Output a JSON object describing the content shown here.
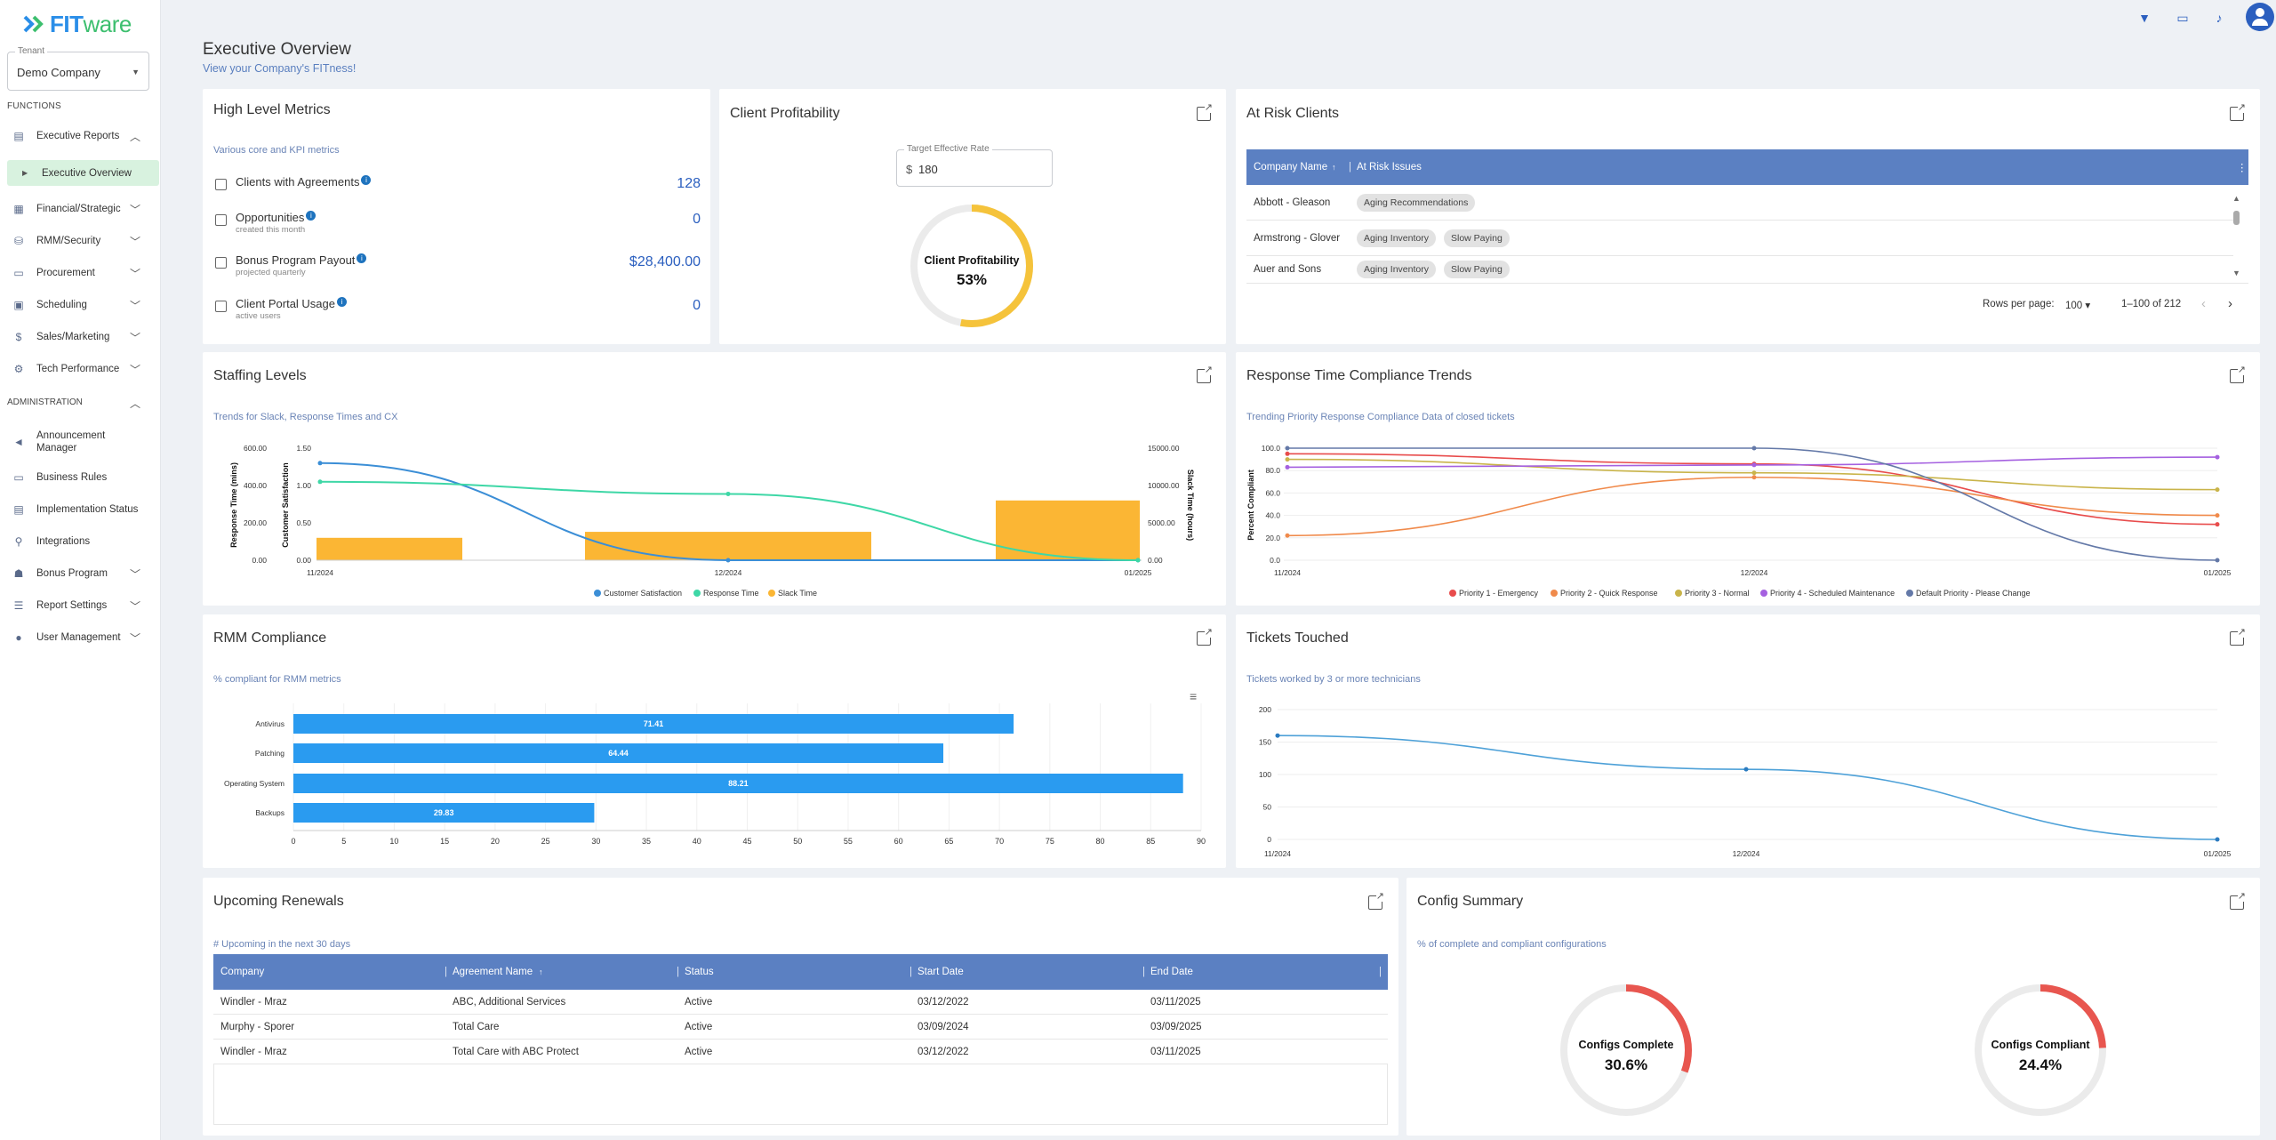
{
  "app": {
    "logo_fit": "FIT",
    "logo_ware": "ware"
  },
  "tenant": {
    "label": "Tenant",
    "value": "Demo Company"
  },
  "sidebar": {
    "functions_label": "FUNCTIONS",
    "admin_label": "ADMINISTRATION",
    "functions": [
      {
        "label": "Executive Reports",
        "icon": "report-icon",
        "caret": "up"
      },
      {
        "label": "Financial/Strategic",
        "icon": "finance-icon",
        "caret": "down"
      },
      {
        "label": "RMM/Security",
        "icon": "security-icon",
        "caret": "down"
      },
      {
        "label": "Procurement",
        "icon": "procurement-icon",
        "caret": "down"
      },
      {
        "label": "Scheduling",
        "icon": "calendar-icon",
        "caret": "down"
      },
      {
        "label": "Sales/Marketing",
        "icon": "dollar-icon",
        "caret": "down"
      },
      {
        "label": "Tech Performance",
        "icon": "tech-icon",
        "caret": "down"
      }
    ],
    "active_sub": "Executive Overview",
    "admin": [
      {
        "label": "Announcement Manager",
        "icon": "megaphone-icon"
      },
      {
        "label": "Business Rules",
        "icon": "rules-icon"
      },
      {
        "label": "Implementation Status",
        "icon": "status-icon"
      },
      {
        "label": "Integrations",
        "icon": "integrations-icon"
      },
      {
        "label": "Bonus Program",
        "icon": "bonus-icon",
        "caret": "down"
      },
      {
        "label": "Report Settings",
        "icon": "settings-icon",
        "caret": "down"
      },
      {
        "label": "User Management",
        "icon": "user-icon",
        "caret": "down"
      }
    ]
  },
  "header": {
    "title": "Executive Overview",
    "subtitle": "View your Company's FITness!"
  },
  "metrics": {
    "title": "High Level Metrics",
    "subtitle": "Various core and KPI metrics",
    "items": [
      {
        "label": "Clients with Agreements",
        "sub": "",
        "value": "128"
      },
      {
        "label": "Opportunities",
        "sub": "created this month",
        "value": "0"
      },
      {
        "label": "Bonus Program Payout",
        "sub": "projected quarterly",
        "value": "$28,400.00"
      },
      {
        "label": "Client Portal Usage",
        "sub": "active users",
        "value": "0"
      }
    ]
  },
  "profitability": {
    "title": "Client Profitability",
    "rate_label": "Target Effective Rate",
    "rate_currency": "$",
    "rate_value": "180",
    "donut_label": "Client Profitability",
    "donut_value": "53%",
    "percent": 53,
    "color": "#f5c33b"
  },
  "at_risk": {
    "title": "At Risk Clients",
    "columns": [
      "Company Name",
      "At Risk Issues"
    ],
    "rows": [
      {
        "company": "Abbott - Gleason",
        "issues": [
          "Aging Recommendations"
        ]
      },
      {
        "company": "Armstrong - Glover",
        "issues": [
          "Aging Inventory",
          "Slow Paying"
        ]
      },
      {
        "company": "Auer and Sons",
        "issues": [
          "Aging Inventory",
          "Slow Paying"
        ]
      }
    ],
    "rows_per_page_label": "Rows per page:",
    "rows_per_page": "100",
    "range": "1–100 of 212"
  },
  "staffing": {
    "title": "Staffing Levels",
    "subtitle": "Trends for Slack, Response Times and CX"
  },
  "response": {
    "title": "Response Time Compliance Trends",
    "subtitle": "Trending Priority Response Compliance Data of closed tickets"
  },
  "rmm": {
    "title": "RMM Compliance",
    "subtitle": "% compliant for RMM metrics"
  },
  "tickets": {
    "title": "Tickets Touched",
    "subtitle": "Tickets worked by 3 or more technicians"
  },
  "renewals": {
    "title": "Upcoming Renewals",
    "subtitle": "# Upcoming in the next 30 days",
    "columns": [
      "Company",
      "Agreement Name",
      "Status",
      "Start Date",
      "End Date"
    ],
    "rows": [
      [
        "Windler - Mraz",
        "ABC, Additional Services",
        "Active",
        "03/12/2022",
        "03/11/2025"
      ],
      [
        "Murphy - Sporer",
        "Total Care",
        "Active",
        "03/09/2024",
        "03/09/2025"
      ],
      [
        "Windler - Mraz",
        "Total Care with ABC Protect",
        "Active",
        "03/12/2022",
        "03/11/2025"
      ]
    ]
  },
  "config": {
    "title": "Config Summary",
    "subtitle": "% of complete and compliant configurations",
    "complete_label": "Configs Complete",
    "complete_value": "30.6%",
    "complete_percent": 30.6,
    "compliant_label": "Configs Compliant",
    "compliant_value": "24.4%",
    "compliant_percent": 24.4,
    "color": "#e8564f"
  },
  "chart_data": [
    {
      "id": "staffing",
      "type": "line",
      "x": [
        "11/2024",
        "12/2024",
        "01/2025"
      ],
      "ylabel": "Response Time (mins)",
      "ylabel2": "Customer Satisfaction",
      "ylabel3": "Slack Time (hours)",
      "y_left_ticks": [
        "600.00",
        "400.00",
        "200.00",
        "0.00"
      ],
      "y_mid_ticks": [
        "1.50",
        "1.00",
        "0.50",
        "0.00"
      ],
      "y_right_ticks": [
        "15000.00",
        "10000.00",
        "5000.00",
        "0.00"
      ],
      "series": [
        {
          "name": "Customer Satisfaction",
          "color": "#3b8ed6",
          "values": [
            1.3,
            0,
            0
          ],
          "axis": "mid"
        },
        {
          "name": "Response Time",
          "color": "#3ed7a6",
          "values": [
            420,
            355,
            0
          ],
          "axis": "left"
        },
        {
          "name": "Slack Time",
          "color": "#fbb634",
          "values": [
            3000,
            3800,
            8000
          ],
          "axis": "right",
          "kind": "bar"
        }
      ]
    },
    {
      "id": "response",
      "type": "line",
      "x": [
        "11/2024",
        "12/2024",
        "01/2025"
      ],
      "ylabel": "Percent Compliant",
      "ylim": [
        0,
        100
      ],
      "y_ticks": [
        "100.0",
        "80.0",
        "60.0",
        "40.0",
        "20.0",
        "0.0"
      ],
      "series": [
        {
          "name": "Priority 1 - Emergency",
          "color": "#e84c4c",
          "values": [
            95,
            86,
            32
          ]
        },
        {
          "name": "Priority 2 - Quick Response",
          "color": "#f08a4b",
          "values": [
            22,
            74,
            40
          ]
        },
        {
          "name": "Priority 3 - Normal",
          "color": "#c9b44a",
          "values": [
            90,
            78,
            63
          ]
        },
        {
          "name": "Priority 4 - Scheduled Maintenance",
          "color": "#a561e0",
          "values": [
            83,
            85,
            92
          ]
        },
        {
          "name": "Default Priority - Please Change",
          "color": "#6479a8",
          "values": [
            100,
            100,
            0
          ]
        }
      ]
    },
    {
      "id": "rmm",
      "type": "bar",
      "orientation": "horizontal",
      "categories": [
        "Antivirus",
        "Patching",
        "Operating System",
        "Backups"
      ],
      "values": [
        71.41,
        64.44,
        88.21,
        29.83
      ],
      "labels": [
        "71.41",
        "64.44",
        "88.21",
        "29.83"
      ],
      "xlim": [
        0,
        90
      ],
      "x_ticks": [
        0,
        5,
        10,
        15,
        20,
        25,
        30,
        35,
        40,
        45,
        50,
        55,
        60,
        65,
        70,
        75,
        80,
        85,
        90
      ],
      "color": "#2a9bf0"
    },
    {
      "id": "tickets",
      "type": "line",
      "x": [
        "11/2024",
        "12/2024",
        "01/2025"
      ],
      "ylim": [
        0,
        200
      ],
      "y_ticks": [
        200,
        150,
        100,
        50,
        0
      ],
      "series": [
        {
          "name": "Tickets Touched",
          "color": "#4ea1d8",
          "values": [
            160,
            108,
            0
          ]
        }
      ]
    }
  ]
}
